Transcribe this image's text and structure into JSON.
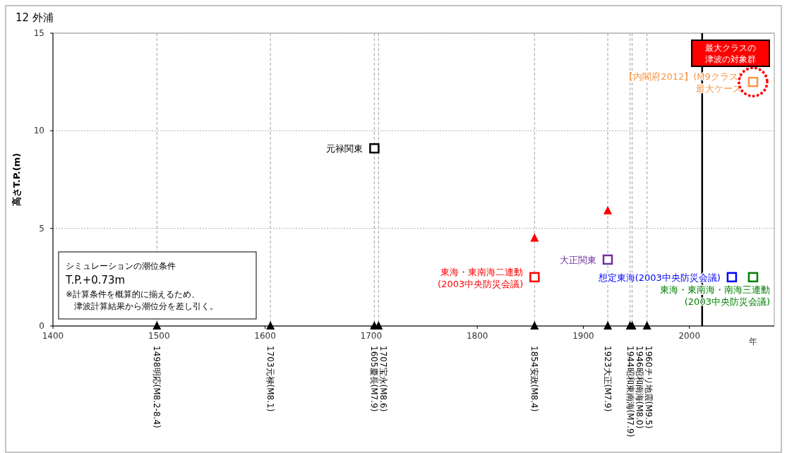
{
  "chart_data": {
    "type": "scatter",
    "title": "12 外浦",
    "xlabel": "年",
    "ylabel": "高さT.P.(m)",
    "xlim": [
      1400,
      2080
    ],
    "xticks": [
      1400,
      1500,
      1600,
      1700,
      1800,
      1900,
      2000
    ],
    "ylim": [
      0,
      15
    ],
    "yticks": [
      0,
      5,
      10,
      15
    ],
    "grid": "y",
    "legend": false,
    "series": [
      {
        "color": "#000000",
        "marker": "triangle",
        "x": [
          1498,
          1605,
          1703,
          1707,
          1854,
          1923,
          1944,
          1946,
          1960
        ],
        "values": [
          0,
          0,
          0,
          0,
          0,
          0,
          0,
          0,
          0
        ]
      },
      {
        "color": "#ff0000",
        "marker": "triangle",
        "x": [
          1854,
          1923
        ],
        "values": [
          4.5,
          5.9
        ]
      },
      {
        "name": "元禄関東",
        "color": "#000000",
        "marker": "square",
        "x": [
          1703
        ],
        "values": [
          9.1
        ]
      },
      {
        "name": "大正関東",
        "color": "#7030a0",
        "marker": "square",
        "x": [
          1923
        ],
        "values": [
          3.4
        ]
      },
      {
        "name": "東海・東南海二連動\n(2003中央防災会議)",
        "color": "#ff0000",
        "marker": "square",
        "x": [
          1854
        ],
        "values": [
          2.5
        ]
      },
      {
        "name": "想定東海(2003中央防災会議)",
        "color": "#0000ff",
        "marker": "square",
        "x": [
          2040
        ],
        "values": [
          2.5
        ]
      },
      {
        "name": "東海・東南海・南海三連動\n(2003中央防災会議)",
        "color": "#008000",
        "marker": "square",
        "x": [
          2060
        ],
        "values": [
          2.5
        ]
      },
      {
        "name": "【内閣府2012】(M9クラス)\n最大ケース",
        "color": "#f79646",
        "marker": "square",
        "x": [
          2060
        ],
        "values": [
          12.5
        ]
      }
    ],
    "ref_lines": [
      {
        "axis": "x",
        "value": 1498,
        "label": "1498明応(M8.2-8.4)",
        "color": "#b0b0b0",
        "line_style": "dashed"
      },
      {
        "axis": "x",
        "value": 1605,
        "label": "1703元禄(M8.1)",
        "color": "#b0b0b0",
        "line_style": "dashed"
      },
      {
        "axis": "x",
        "value": 1703,
        "label": "1605慶長(M7.9)",
        "color": "#b0b0b0",
        "line_style": "dashed"
      },
      {
        "axis": "x",
        "value": 1707,
        "label": "1707宝永(M8.6)",
        "color": "#b0b0b0",
        "line_style": "dashed"
      },
      {
        "axis": "x",
        "value": 1854,
        "label": "1854安政(M8.4)",
        "color": "#b0b0b0",
        "line_style": "dashed"
      },
      {
        "axis": "x",
        "value": 1923,
        "label": "1923大正(M7.9)",
        "color": "#b0b0b0",
        "line_style": "dashed"
      },
      {
        "axis": "x",
        "value": 1944,
        "label": "1944昭和東南海(M7.9)",
        "color": "#b0b0b0",
        "line_style": "dashed"
      },
      {
        "axis": "x",
        "value": 1946,
        "label": "1946昭和南海(M8.0)",
        "color": "#b0b0b0",
        "line_style": "dashed"
      },
      {
        "axis": "x",
        "value": 1960,
        "label": "1960チリ地震(M9.5)",
        "color": "#b0b0b0",
        "line_style": "dashed"
      },
      {
        "axis": "x",
        "value": 2012,
        "color": "#000000",
        "line_style": "solid"
      }
    ],
    "annotations": [
      "最大クラスの",
      "津波の対象群",
      "シミュレーションの潮位条件",
      "T.P.+0.73m",
      "※計算条件を概算的に揃えるため、",
      "津波計算結果から潮位分を差し引く。"
    ]
  }
}
